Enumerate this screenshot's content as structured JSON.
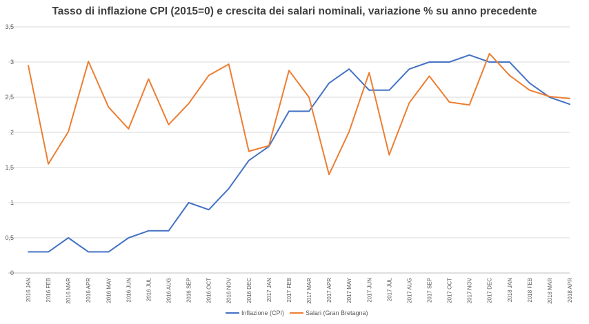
{
  "chart_data": {
    "type": "line",
    "title": "Tasso di inflazione CPI (2015=0) e crescita dei salari nominali, variazione % su anno precedente",
    "xlabel": "",
    "ylabel": "",
    "ylim": [
      0,
      3.5
    ],
    "y_ticks": [
      "0",
      "0,5",
      "1",
      "1,5",
      "2",
      "2,5",
      "3",
      "3,5"
    ],
    "grid": true,
    "legend_position": "bottom",
    "categories": [
      "2016 JAN",
      "2016 FEB",
      "2016 MAR",
      "2016 APR",
      "2016 MAY",
      "2016 JUN",
      "2016 JUL",
      "2016 AUG",
      "2016 SEP",
      "2016 OCT",
      "2016 NOV",
      "2016 DEC",
      "2017 JAN",
      "2017 FEB",
      "2017 MAR",
      "2017 APR",
      "2017 MAY",
      "2017 JUN",
      "2017 JUL",
      "2017 AUG",
      "2017 SEP",
      "2017 OCT",
      "2017 NOV",
      "2017 DEC",
      "2018 JAN",
      "2018 FEB",
      "2018 MAR",
      "2018 APR"
    ],
    "series": [
      {
        "name": "Inflazione (CPI)",
        "color": "#4472C4",
        "values": [
          0.3,
          0.3,
          0.5,
          0.3,
          0.3,
          0.5,
          0.6,
          0.6,
          1.0,
          0.9,
          1.2,
          1.6,
          1.8,
          2.3,
          2.3,
          2.7,
          2.9,
          2.6,
          2.6,
          2.9,
          3.0,
          3.0,
          3.1,
          3.0,
          3.0,
          2.7,
          2.5,
          2.4
        ]
      },
      {
        "name": "Salari (Gran Bretagna)",
        "color": "#ED7D31",
        "values": [
          2.95,
          1.55,
          2.01,
          3.01,
          2.36,
          2.05,
          2.76,
          2.11,
          2.41,
          2.81,
          2.97,
          1.73,
          1.81,
          2.88,
          2.5,
          1.4,
          2.01,
          2.85,
          1.68,
          2.42,
          2.8,
          2.43,
          2.39,
          3.12,
          2.81,
          2.6,
          2.51,
          2.48
        ]
      }
    ]
  }
}
